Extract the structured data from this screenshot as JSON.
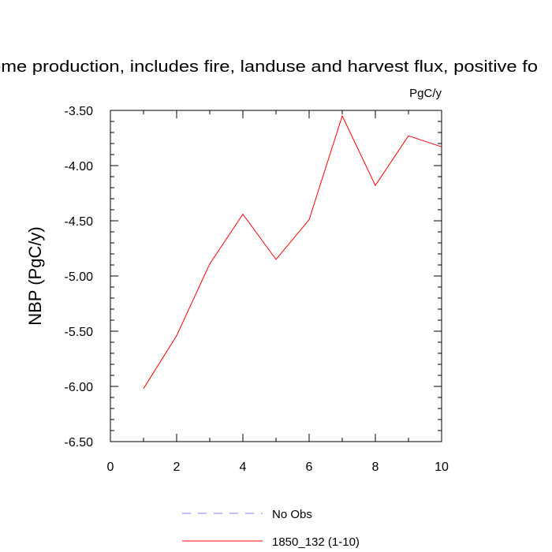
{
  "chart_data": {
    "type": "line",
    "title": "ome production, includes fire, landuse and harvest flux, positive fo",
    "units_label": "PgC/y",
    "xlabel": "",
    "ylabel": "NBP  (PgC/y)",
    "xlim": [
      0,
      10
    ],
    "ylim": [
      -6.5,
      -3.5
    ],
    "x_ticks": [
      "0",
      "2",
      "4",
      "6",
      "8",
      "10"
    ],
    "y_ticks": [
      "-3.50",
      "-4.00",
      "-4.50",
      "-5.00",
      "-5.50",
      "-6.00",
      "-6.50"
    ],
    "grid": false,
    "legend_position": "bottom",
    "series": [
      {
        "name": "1850_132 (1-10)",
        "color": "#ff0000",
        "style": "solid",
        "x": [
          1,
          2,
          3,
          4,
          5,
          6,
          7,
          8,
          9,
          10
        ],
        "y": [
          -6.02,
          -5.54,
          -4.89,
          -4.44,
          -4.85,
          -4.49,
          -3.55,
          -4.18,
          -3.73,
          -3.83
        ]
      }
    ],
    "legend": [
      {
        "name": "No Obs",
        "color": "#8080ff",
        "style": "dashed"
      },
      {
        "name": "1850_132 (1-10)",
        "color": "#ff0000",
        "style": "solid"
      }
    ]
  }
}
